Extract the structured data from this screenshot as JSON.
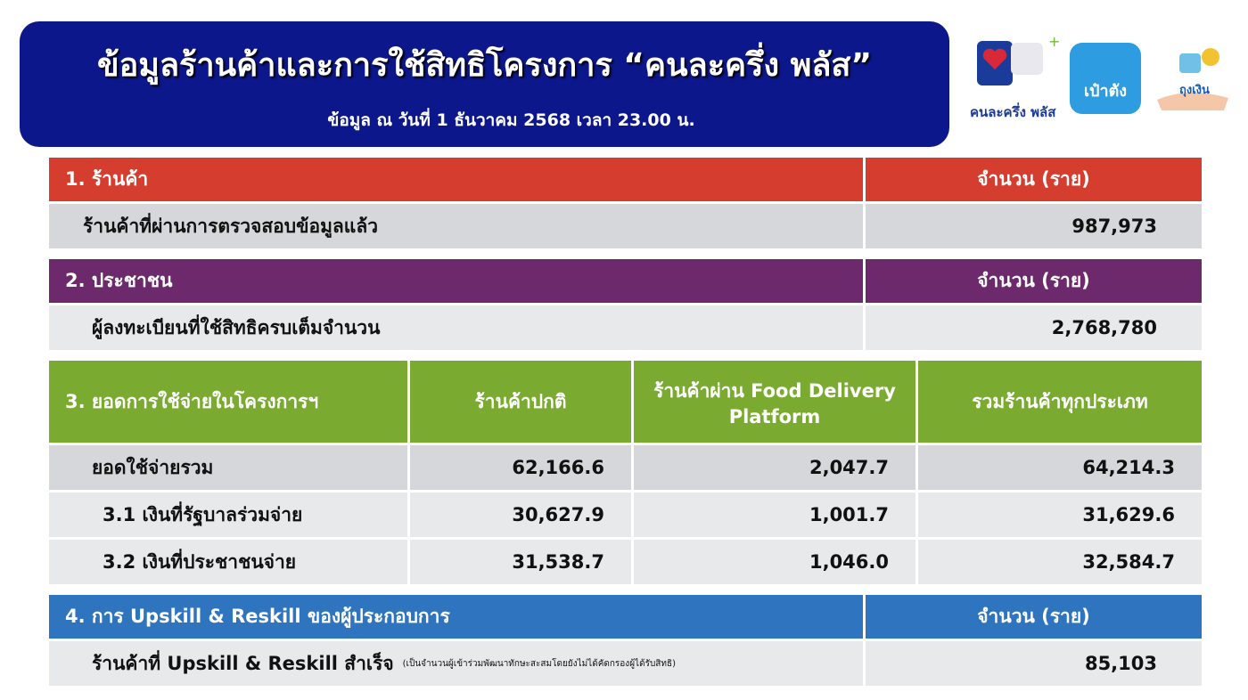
{
  "header": {
    "title": "ข้อมูลร้านค้าและการใช้สิทธิโครงการ “คนละครึ่ง พลัส”",
    "subtitle": "ข้อมูล ณ วันที่ 1 ธันวาคม 2568 เวลา 23.00 น."
  },
  "logos": {
    "khonlakhrueng": "คนละครึ่ง พลัส",
    "paotang": "เป๋าตัง",
    "tungngoen": "ถุงเงิน"
  },
  "colors": {
    "banner": "#0d178c",
    "section1": "#d53d2f",
    "section2": "#6c2a6c",
    "section3": "#7aab30",
    "section4": "#2f74bf",
    "row_dark": "#d5d7db",
    "row_light": "#e8e9eb"
  },
  "section1": {
    "title": "1. ร้านค้า",
    "unit": "จำนวน (ราย)",
    "label": "ร้านค้าที่ผ่านการตรวจสอบข้อมูลแล้ว",
    "value": "987,973"
  },
  "section2": {
    "title": "2. ประชาชน",
    "unit": "จำนวน (ราย)",
    "label": "ผู้ลงทะเบียนที่ใช้สิทธิครบเต็มจำนวน",
    "value": "2,768,780"
  },
  "section3": {
    "headers": [
      "3. ยอดการใช้จ่ายในโครงการฯ",
      "ร้านค้าปกติ",
      "ร้านค้าผ่าน Food Delivery Platform",
      "รวมร้านค้าทุกประเภท"
    ],
    "rows": [
      {
        "label": "ยอดใช้จ่ายรวม",
        "normal": "62,166.6",
        "delivery": "2,047.7",
        "total": "64,214.3"
      },
      {
        "label": "3.1 เงินที่รัฐบาลร่วมจ่าย",
        "normal": "30,627.9",
        "delivery": "1,001.7",
        "total": "31,629.6"
      },
      {
        "label": "3.2 เงินที่ประชาชนจ่าย",
        "normal": "31,538.7",
        "delivery": "1,046.0",
        "total": "32,584.7"
      }
    ]
  },
  "section4": {
    "title": "4. การ Upskill & Reskill ของผู้ประกอบการ",
    "unit": "จำนวน (ราย)",
    "label": "ร้านค้าที่ Upskill & Reskill สำเร็จ",
    "note": "(เป็นจำนวนผู้เข้าร่วมพัฒนาทักษะสะสมโดยยังไม่ได้คัดกรองผู้ได้รับสิทธิ)",
    "value": "85,103"
  }
}
